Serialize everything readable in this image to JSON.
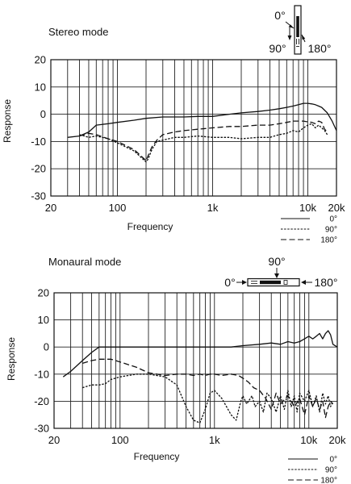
{
  "chart_data": [
    {
      "type": "line",
      "title": "Stereo mode",
      "xlabel": "Frequency",
      "ylabel": "Response",
      "xscale": "log",
      "xlim": [
        20,
        20000
      ],
      "ylim": [
        -30,
        20
      ],
      "yticks": [
        20,
        10,
        0,
        -10,
        -20,
        -30
      ],
      "xticks": [
        {
          "v": 20,
          "label": "20"
        },
        {
          "v": 100,
          "label": "100"
        },
        {
          "v": 1000,
          "label": "1k"
        },
        {
          "v": 10000,
          "label": "10k"
        },
        {
          "v": 20000,
          "label": "20k"
        }
      ],
      "grid": true,
      "legend": "bottom-right",
      "diagram_labels": {
        "front": "0°",
        "side": "90°",
        "back": "180°"
      },
      "series": [
        {
          "name": "0°",
          "dash": "solid",
          "x": [
            30,
            40,
            50,
            60,
            80,
            100,
            150,
            200,
            300,
            500,
            700,
            1000,
            1500,
            2000,
            3000,
            4000,
            5000,
            6000,
            7000,
            8000,
            9000,
            10000,
            11000,
            12000,
            13000,
            14000,
            16000,
            18000,
            20000
          ],
          "y": [
            -8.5,
            -8,
            -6.5,
            -4,
            -3.5,
            -3,
            -2.2,
            -1.5,
            -1,
            -1,
            -0.8,
            -0.8,
            0,
            0.5,
            1,
            1.5,
            2,
            2.5,
            3,
            3.5,
            4,
            4,
            3.8,
            3.5,
            3,
            2.5,
            0.5,
            -2.5,
            -6
          ]
        },
        {
          "name": "90°",
          "dash": "dotted",
          "x": [
            40,
            50,
            60,
            80,
            100,
            150,
            200,
            210,
            230,
            260,
            300,
            400,
            500,
            700,
            1000,
            1500,
            2000,
            3000,
            4000,
            5000,
            6000,
            7000,
            8000,
            9000,
            10000,
            11000,
            12000,
            13000,
            14000,
            15000,
            16000
          ],
          "y": [
            -7.5,
            -8.5,
            -8,
            -9,
            -10.5,
            -13.5,
            -17.5,
            -16.5,
            -13,
            -10,
            -9.5,
            -8.5,
            -8.5,
            -8,
            -8.5,
            -8.5,
            -9,
            -8.5,
            -8.5,
            -7.5,
            -7,
            -6,
            -6.5,
            -5,
            -4,
            -3.5,
            -5,
            -4,
            -5,
            -6,
            -7.5
          ]
        },
        {
          "name": "180°",
          "dash": "dashed",
          "x": [
            40,
            50,
            60,
            80,
            100,
            150,
            200,
            230,
            260,
            300,
            400,
            500,
            700,
            1000,
            1500,
            2000,
            3000,
            4000,
            5000,
            6000,
            7000,
            8000,
            9000,
            10000,
            11000,
            12000,
            13000,
            14000,
            15000,
            16000
          ],
          "y": [
            -8,
            -7,
            -7.5,
            -9,
            -10,
            -13,
            -17,
            -12,
            -9.5,
            -7.5,
            -6.5,
            -6,
            -5.5,
            -5,
            -4.5,
            -4.5,
            -4,
            -4,
            -3.5,
            -3,
            -2.5,
            -2.5,
            -2.5,
            -2.8,
            -3,
            -3.5,
            -2.5,
            -3,
            -5.5,
            -6.5
          ]
        }
      ]
    },
    {
      "type": "line",
      "title": "Monaural mode",
      "xlabel": "Frequency",
      "ylabel": "Response",
      "xscale": "log",
      "xlim": [
        20,
        20000
      ],
      "ylim": [
        -30,
        20
      ],
      "yticks": [
        20,
        10,
        0,
        -10,
        -20,
        -30
      ],
      "xticks": [
        {
          "v": 20,
          "label": "20"
        },
        {
          "v": 100,
          "label": "100"
        },
        {
          "v": 1000,
          "label": "1k"
        },
        {
          "v": 10000,
          "label": "10k"
        },
        {
          "v": 20000,
          "label": "20k"
        }
      ],
      "grid": true,
      "legend": "bottom-right",
      "diagram_labels": {
        "front": "0°",
        "side": "90°",
        "back": "180°"
      },
      "series": [
        {
          "name": "0°",
          "dash": "solid",
          "x": [
            25,
            30,
            40,
            50,
            60,
            80,
            100,
            200,
            500,
            1000,
            1500,
            2000,
            3000,
            4000,
            5000,
            6000,
            7000,
            8000,
            9000,
            10000,
            11000,
            12000,
            13000,
            14000,
            15000,
            16000,
            17000,
            18000,
            20000
          ],
          "y": [
            -11,
            -9,
            -5,
            -2,
            0,
            0,
            0,
            0,
            0,
            0,
            0,
            0.5,
            1,
            1.5,
            1,
            2,
            1.5,
            2,
            3,
            4,
            3,
            4,
            5,
            3,
            5,
            6,
            4.5,
            1,
            0
          ]
        },
        {
          "name": "90°",
          "dash": "dotted",
          "x": [
            40,
            50,
            60,
            70,
            80,
            100,
            150,
            200,
            300,
            400,
            500,
            600,
            700,
            800,
            900,
            1000,
            1200,
            1500,
            1700,
            1900,
            2000,
            2200,
            2500,
            2700,
            3000,
            3300,
            3600,
            4000,
            4500,
            5000,
            5500,
            6000,
            6500,
            7000,
            7500,
            8000,
            9000,
            10000,
            11000,
            12000,
            13000,
            14000,
            15000,
            16000,
            17000,
            18000
          ],
          "y": [
            -15,
            -14,
            -14,
            -13.5,
            -12,
            -11,
            -10,
            -10,
            -11,
            -14,
            -22,
            -27,
            -28,
            -23,
            -17,
            -16,
            -19,
            -25,
            -27,
            -20,
            -18,
            -21,
            -18,
            -22,
            -20,
            -24,
            -17,
            -19,
            -24,
            -18,
            -23,
            -16,
            -22,
            -18,
            -24,
            -17,
            -20,
            -16,
            -22,
            -18,
            -24,
            -17,
            -21,
            -18,
            -22,
            -20
          ]
        },
        {
          "name": "180°",
          "dash": "dashed",
          "x": [
            40,
            50,
            60,
            70,
            80,
            100,
            150,
            200,
            300,
            400,
            500,
            600,
            700,
            800,
            900,
            1000,
            1200,
            1500,
            1800,
            2000,
            2300,
            2600,
            3000,
            3500,
            4000,
            4500,
            5000,
            6000,
            7000,
            8000,
            9000,
            10000,
            11000,
            12000,
            13000,
            14000,
            15000,
            16000,
            17000,
            18000
          ],
          "y": [
            -6,
            -5,
            -4.5,
            -4.5,
            -4.5,
            -5.5,
            -7.5,
            -9.5,
            -10.5,
            -10,
            -10,
            -10.5,
            -10,
            -10.5,
            -10,
            -10,
            -10.5,
            -10,
            -10.5,
            -11.5,
            -13,
            -15,
            -16,
            -19,
            -23,
            -17,
            -21,
            -18,
            -22,
            -19,
            -25,
            -18,
            -22,
            -19,
            -23,
            -20,
            -26,
            -22,
            -20,
            -21
          ]
        }
      ]
    }
  ]
}
